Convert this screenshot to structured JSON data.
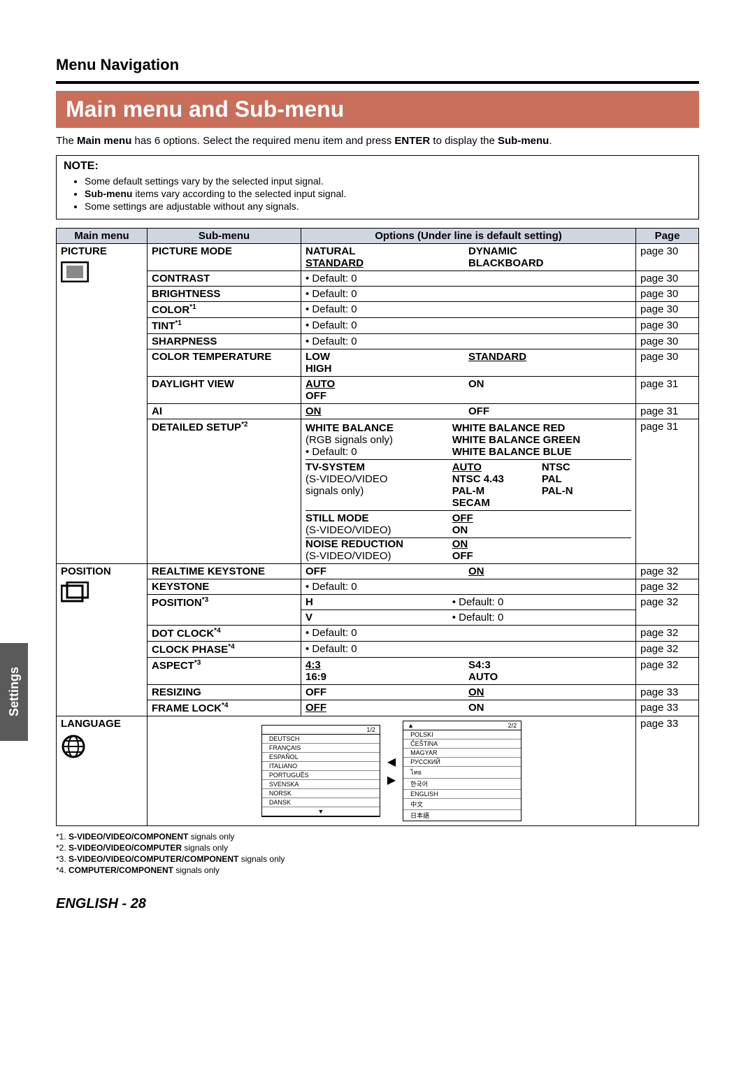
{
  "header": {
    "section": "Menu Navigation",
    "banner": "Main menu and Sub-menu",
    "intro_parts": [
      "The ",
      "Main menu",
      " has 6 options. Select the required menu item and press ",
      "ENTER",
      " to display the ",
      "Sub-menu",
      "."
    ]
  },
  "note": {
    "title": "NOTE:",
    "items": [
      {
        "pre": "",
        "b": "",
        "post": "Some default settings vary by the selected input signal."
      },
      {
        "pre": "",
        "b": "Sub-menu",
        "post": " items vary according to the selected input signal."
      },
      {
        "pre": "",
        "b": "",
        "post": "Some settings are adjustable without any signals."
      }
    ]
  },
  "table": {
    "headers": {
      "main": "Main menu",
      "sub": "Sub-menu",
      "opts": "Options (Under line is default setting)",
      "page": "Page"
    },
    "picture": {
      "label": "PICTURE",
      "rows": [
        {
          "sub": "PICTURE MODE",
          "opts": [
            {
              "t": "NATURAL",
              "b": true
            },
            {
              "t": "DYNAMIC",
              "b": true
            },
            {
              "t": "STANDARD",
              "b": true,
              "u": true
            },
            {
              "t": "BLACKBOARD",
              "b": true
            }
          ],
          "page": "page 30"
        },
        {
          "sub": "CONTRAST",
          "opts_text": "• Default: 0",
          "page": "page 30"
        },
        {
          "sub": "BRIGHTNESS",
          "opts_text": "• Default: 0",
          "page": "page 30"
        },
        {
          "sub": "COLOR",
          "sup": "*1",
          "opts_text": "• Default: 0",
          "page": "page 30"
        },
        {
          "sub": "TINT",
          "sup": "*1",
          "opts_text": "• Default: 0",
          "page": "page 30"
        },
        {
          "sub": "SHARPNESS",
          "opts_text": "• Default: 0",
          "page": "page 30"
        },
        {
          "sub": "COLOR TEMPERATURE",
          "opts": [
            {
              "t": "LOW",
              "b": true
            },
            {
              "t": "STANDARD",
              "b": true,
              "u": true
            },
            {
              "t": "HIGH",
              "b": true
            },
            {
              "t": ""
            }
          ],
          "page": "page 30"
        },
        {
          "sub": "DAYLIGHT VIEW",
          "opts": [
            {
              "t": "AUTO",
              "b": true,
              "u": true
            },
            {
              "t": "ON",
              "b": true
            },
            {
              "t": "OFF",
              "b": true
            },
            {
              "t": ""
            }
          ],
          "page": "page 31"
        },
        {
          "sub": "AI",
          "opts": [
            {
              "t": "ON",
              "b": true,
              "u": true
            },
            {
              "t": "OFF",
              "b": true
            }
          ],
          "page": "page 31"
        }
      ],
      "detailed": {
        "sub": "DETAILED SETUP",
        "sup": "*2",
        "page": "page 31",
        "blocks": [
          {
            "left": [
              {
                "t": "WHITE BALANCE",
                "b": true
              },
              {
                "t": "(RGB signals only)"
              },
              {
                "t": "• Default: 0"
              }
            ],
            "right": [
              {
                "t": "WHITE BALANCE RED",
                "b": true
              },
              {
                "t": "WHITE BALANCE GREEN",
                "b": true
              },
              {
                "t": "WHITE BALANCE BLUE",
                "b": true
              }
            ]
          },
          {
            "left": [
              {
                "t": "TV-SYSTEM",
                "b": true
              },
              {
                "t": "(S-VIDEO/VIDEO"
              },
              {
                "t": "signals only)"
              },
              {
                "t": ""
              }
            ],
            "right_grid": [
              [
                {
                  "t": "AUTO",
                  "b": true,
                  "u": true
                },
                {
                  "t": "NTSC",
                  "b": true
                }
              ],
              [
                {
                  "t": "NTSC 4.43",
                  "b": true
                },
                {
                  "t": "PAL",
                  "b": true
                }
              ],
              [
                {
                  "t": "PAL-M",
                  "b": true
                },
                {
                  "t": "PAL-N",
                  "b": true
                }
              ],
              [
                {
                  "t": "SECAM",
                  "b": true
                },
                {
                  "t": ""
                }
              ]
            ]
          },
          {
            "left": [
              {
                "t": "STILL MODE",
                "b": true
              },
              {
                "t": "(S-VIDEO/VIDEO)"
              }
            ],
            "right": [
              {
                "t": "OFF",
                "b": true,
                "u": true
              },
              {
                "t": "ON",
                "b": true
              }
            ]
          },
          {
            "left": [
              {
                "t": "NOISE REDUCTION",
                "b": true
              },
              {
                "t": "(S-VIDEO/VIDEO)"
              }
            ],
            "right": [
              {
                "t": "ON",
                "b": true,
                "u": true
              },
              {
                "t": "OFF",
                "b": true
              }
            ]
          }
        ]
      }
    },
    "position": {
      "label": "POSITION",
      "rows": [
        {
          "sub": "REALTIME KEYSTONE",
          "opts": [
            {
              "t": "OFF",
              "b": true
            },
            {
              "t": "ON",
              "b": true,
              "u": true
            }
          ],
          "page": "page 32"
        },
        {
          "sub": "KEYSTONE",
          "opts_text": "• Default: 0",
          "page": "page 32"
        },
        {
          "sub": "POSITION",
          "sup": "*3",
          "position_rows": [
            {
              "l": "H",
              "r": "• Default: 0"
            },
            {
              "l": "V",
              "r": "• Default: 0"
            }
          ],
          "page": "page 32"
        },
        {
          "sub": "DOT CLOCK",
          "sup": "*4",
          "opts_text": "• Default: 0",
          "page": "page 32"
        },
        {
          "sub": "CLOCK PHASE",
          "sup": "*4",
          "opts_text": "• Default: 0",
          "page": "page 32"
        },
        {
          "sub": "ASPECT",
          "sup": "*3",
          "opts": [
            {
              "t": "4:3",
              "b": true,
              "u": true
            },
            {
              "t": "S4:3",
              "b": true
            },
            {
              "t": "16:9",
              "b": true
            },
            {
              "t": "AUTO",
              "b": true
            }
          ],
          "page": "page 32"
        },
        {
          "sub": "RESIZING",
          "opts": [
            {
              "t": "OFF",
              "b": true
            },
            {
              "t": "ON",
              "b": true,
              "u": true
            }
          ],
          "page": "page 33"
        },
        {
          "sub": "FRAME LOCK",
          "sup": "*4",
          "opts": [
            {
              "t": "OFF",
              "b": true,
              "u": true
            },
            {
              "t": "ON",
              "b": true
            }
          ],
          "page": "page 33"
        }
      ]
    },
    "language": {
      "label": "LANGUAGE",
      "page": "page 33",
      "panel1": {
        "head": "1/2",
        "items": [
          "DEUTSCH",
          "FRANÇAIS",
          "ESPAÑOL",
          "ITALIANO",
          "PORTUGUÊS",
          "SVENSKA",
          "NORSK",
          "DANSK"
        ]
      },
      "panel2": {
        "head": "2/2",
        "items": [
          "POLSKI",
          "ČEŠTINA",
          "MAGYAR",
          "РУССКИЙ",
          "ไทย",
          "한국어",
          "ENGLISH",
          "中文",
          "日本語"
        ]
      }
    }
  },
  "footnotes": [
    {
      "n": "*1.",
      "b": "S-VIDEO/VIDEO/COMPONENT",
      "t": " signals only"
    },
    {
      "n": "*2.",
      "b": "S-VIDEO/VIDEO/COMPUTER",
      "t": " signals only"
    },
    {
      "n": "*3.",
      "b": "S-VIDEO/VIDEO/COMPUTER/COMPONENT",
      "t": " signals only"
    },
    {
      "n": "*4.",
      "b": "COMPUTER/COMPONENT",
      "t": " signals only"
    }
  ],
  "side_tab": "Settings",
  "footer": {
    "lang": "ENGLISH",
    "page": "28"
  },
  "colors": {
    "banner_bg": "#c86e5a",
    "header_bg": "#d0d6e0",
    "tab_bg": "#5a5a5a"
  }
}
